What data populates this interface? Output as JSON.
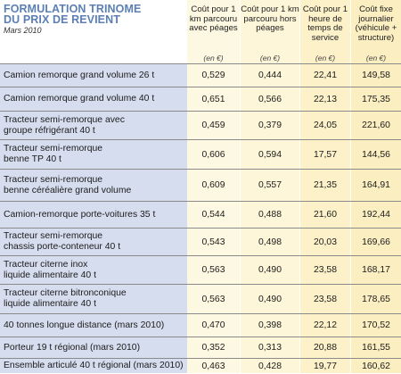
{
  "title": {
    "line1": "FORMULATION TRINOME",
    "line2": "DU PRIX DE REVIENT",
    "date": "Mars 2010"
  },
  "columns": [
    {
      "label": "Coût pour 1 km parcouru avec péages",
      "unit": "(en €)"
    },
    {
      "label": "Coût pour 1 km parcouru hors péages",
      "unit": "(en €)"
    },
    {
      "label": "Coût pour 1 heure de temps de service",
      "unit": "(en €)"
    },
    {
      "label": "Coût fixe journalier (véhicule + structure)",
      "unit": "(en €)"
    }
  ],
  "rows": [
    {
      "name": [
        "Camion remorque grand volume 26 t"
      ],
      "values": [
        "0,529",
        "0,444",
        "22,41",
        "149,58"
      ]
    },
    {
      "name": [
        "Camion remorque grand volume 40 t"
      ],
      "values": [
        "0,651",
        "0,566",
        "22,13",
        "175,35"
      ]
    },
    {
      "name": [
        "Tracteur semi-remorque avec",
        "groupe réfrigérant 40 t"
      ],
      "values": [
        "0,459",
        "0,379",
        "24,05",
        "221,60"
      ]
    },
    {
      "name": [
        "Tracteur semi-remorque",
        "benne TP 40 t"
      ],
      "values": [
        "0,606",
        "0,594",
        "17,57",
        "144,56"
      ]
    },
    {
      "name": [
        "Tracteur semi-remorque",
        "benne céréalière grand volume"
      ],
      "values": [
        "0,609",
        "0,557",
        "21,35",
        "164,91"
      ]
    },
    {
      "name": [
        "Camion-remorque porte-voitures 35 t"
      ],
      "values": [
        "0,544",
        "0,488",
        "21,60",
        "192,44"
      ]
    },
    {
      "name": [
        "Tracteur semi-remorque",
        "chassis porte-conteneur 40 t"
      ],
      "values": [
        "0,543",
        "0,498",
        "20,03",
        "169,66"
      ]
    },
    {
      "name": [
        "Tracteur citerne inox",
        "liquide alimentaire 40 t"
      ],
      "values": [
        "0,563",
        "0,490",
        "23,58",
        "168,17"
      ]
    },
    {
      "name": [
        "Tracteur citerne bitronconique",
        "liquide alimentaire 40 t"
      ],
      "values": [
        "0,563",
        "0,490",
        "23,58",
        "178,65"
      ]
    },
    {
      "name": [
        "40 tonnes longue distance (mars 2010)"
      ],
      "values": [
        "0,470",
        "0,398",
        "22,12",
        "170,52"
      ]
    },
    {
      "name": [
        "Porteur 19 t régional (mars 2010)"
      ],
      "values": [
        "0,352",
        "0,313",
        "20,88",
        "161,55"
      ]
    },
    {
      "name": [
        "Ensemble articulé 40 t régional (mars 2010)"
      ],
      "values": [
        "0,463",
        "0,428",
        "19,77",
        "160,62"
      ]
    }
  ]
}
